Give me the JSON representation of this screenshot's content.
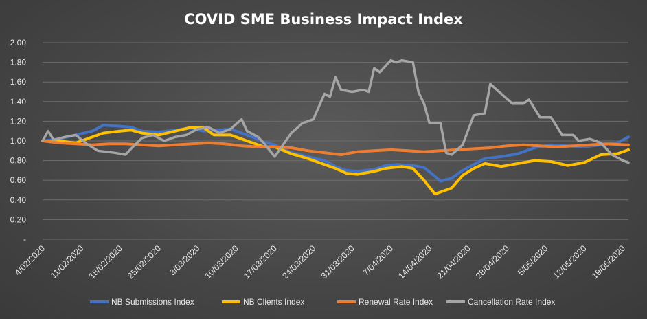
{
  "chart_data": {
    "type": "line",
    "title": "COVID SME Business Impact Index",
    "xlabel": "",
    "ylabel": "",
    "ylim": [
      0,
      2.0
    ],
    "yticks": [
      "2.00",
      "1.80",
      "1.60",
      "1.40",
      "1.20",
      "1.00",
      "0.80",
      "0.60",
      "0.40",
      "0.20",
      "-"
    ],
    "xticks": [
      "4/02/2020",
      "11/02/2020",
      "18/02/2020",
      "25/02/2020",
      "3/03/2020",
      "10/03/2020",
      "17/03/2020",
      "24/03/2020",
      "31/03/2020",
      "7/04/2020",
      "14/04/2020",
      "21/04/2020",
      "28/04/2020",
      "5/05/2020",
      "12/05/2020",
      "19/05/2020"
    ],
    "x_start": "4/02/2020",
    "x_end": "20/05/2020",
    "grid": true,
    "legend_position": "bottom",
    "series": [
      {
        "name": "NB Submissions Index",
        "color": "#4472c4",
        "points": [
          [
            "4/02/2020",
            1.0
          ],
          [
            "7/02/2020",
            1.02
          ],
          [
            "10/02/2020",
            1.06
          ],
          [
            "13/02/2020",
            1.1
          ],
          [
            "15/02/2020",
            1.16
          ],
          [
            "18/02/2020",
            1.15
          ],
          [
            "20/02/2020",
            1.14
          ],
          [
            "22/02/2020",
            1.1
          ],
          [
            "25/02/2020",
            1.09
          ],
          [
            "28/02/2020",
            1.11
          ],
          [
            "2/03/2020",
            1.13
          ],
          [
            "4/03/2020",
            1.1
          ],
          [
            "7/03/2020",
            1.11
          ],
          [
            "9/03/2020",
            1.12
          ],
          [
            "11/03/2020",
            1.08
          ],
          [
            "13/03/2020",
            1.04
          ],
          [
            "15/03/2020",
            0.99
          ],
          [
            "17/03/2020",
            0.96
          ],
          [
            "20/03/2020",
            0.88
          ],
          [
            "23/03/2020",
            0.84
          ],
          [
            "26/03/2020",
            0.8
          ],
          [
            "28/03/2020",
            0.74
          ],
          [
            "30/03/2020",
            0.7
          ],
          [
            "1/04/2020",
            0.69
          ],
          [
            "4/04/2020",
            0.71
          ],
          [
            "6/04/2020",
            0.75
          ],
          [
            "8/04/2020",
            0.76
          ],
          [
            "11/04/2020",
            0.75
          ],
          [
            "13/04/2020",
            0.73
          ],
          [
            "15/04/2020",
            0.64
          ],
          [
            "16/04/2020",
            0.59
          ],
          [
            "18/04/2020",
            0.62
          ],
          [
            "20/04/2020",
            0.7
          ],
          [
            "22/04/2020",
            0.76
          ],
          [
            "24/04/2020",
            0.82
          ],
          [
            "27/04/2020",
            0.84
          ],
          [
            "30/04/2020",
            0.87
          ],
          [
            "3/05/2020",
            0.93
          ],
          [
            "6/05/2020",
            0.96
          ],
          [
            "9/05/2020",
            0.95
          ],
          [
            "12/05/2020",
            0.94
          ],
          [
            "15/05/2020",
            0.96
          ],
          [
            "18/05/2020",
            0.98
          ],
          [
            "20/05/2020",
            1.04
          ]
        ]
      },
      {
        "name": "NB Clients Index",
        "color": "#ffc000",
        "points": [
          [
            "4/02/2020",
            1.0
          ],
          [
            "7/02/2020",
            1.0
          ],
          [
            "10/02/2020",
            0.98
          ],
          [
            "13/02/2020",
            1.04
          ],
          [
            "15/02/2020",
            1.08
          ],
          [
            "18/02/2020",
            1.1
          ],
          [
            "20/02/2020",
            1.11
          ],
          [
            "22/02/2020",
            1.08
          ],
          [
            "25/02/2020",
            1.06
          ],
          [
            "28/02/2020",
            1.1
          ],
          [
            "2/03/2020",
            1.14
          ],
          [
            "4/03/2020",
            1.14
          ],
          [
            "6/03/2020",
            1.06
          ],
          [
            "9/03/2020",
            1.06
          ],
          [
            "11/03/2020",
            1.02
          ],
          [
            "13/03/2020",
            0.98
          ],
          [
            "15/03/2020",
            0.94
          ],
          [
            "17/03/2020",
            0.94
          ],
          [
            "20/03/2020",
            0.87
          ],
          [
            "23/03/2020",
            0.82
          ],
          [
            "26/03/2020",
            0.76
          ],
          [
            "28/03/2020",
            0.72
          ],
          [
            "30/03/2020",
            0.67
          ],
          [
            "1/04/2020",
            0.66
          ],
          [
            "4/04/2020",
            0.69
          ],
          [
            "6/04/2020",
            0.72
          ],
          [
            "9/04/2020",
            0.74
          ],
          [
            "11/04/2020",
            0.72
          ],
          [
            "13/04/2020",
            0.6
          ],
          [
            "15/04/2020",
            0.46
          ],
          [
            "18/04/2020",
            0.52
          ],
          [
            "20/04/2020",
            0.65
          ],
          [
            "22/04/2020",
            0.72
          ],
          [
            "24/04/2020",
            0.77
          ],
          [
            "27/04/2020",
            0.74
          ],
          [
            "30/04/2020",
            0.77
          ],
          [
            "3/05/2020",
            0.8
          ],
          [
            "6/05/2020",
            0.79
          ],
          [
            "9/05/2020",
            0.75
          ],
          [
            "12/05/2020",
            0.78
          ],
          [
            "15/05/2020",
            0.86
          ],
          [
            "18/05/2020",
            0.87
          ],
          [
            "20/05/2020",
            0.91
          ]
        ]
      },
      {
        "name": "Renewal Rate Index",
        "color": "#ed7d31",
        "points": [
          [
            "4/02/2020",
            1.0
          ],
          [
            "7/02/2020",
            0.98
          ],
          [
            "10/02/2020",
            0.97
          ],
          [
            "13/02/2020",
            0.96
          ],
          [
            "16/02/2020",
            0.97
          ],
          [
            "19/02/2020",
            0.97
          ],
          [
            "22/02/2020",
            0.96
          ],
          [
            "25/02/2020",
            0.95
          ],
          [
            "28/02/2020",
            0.96
          ],
          [
            "2/03/2020",
            0.97
          ],
          [
            "5/03/2020",
            0.98
          ],
          [
            "8/03/2020",
            0.97
          ],
          [
            "11/03/2020",
            0.95
          ],
          [
            "14/03/2020",
            0.94
          ],
          [
            "17/03/2020",
            0.94
          ],
          [
            "20/03/2020",
            0.93
          ],
          [
            "23/03/2020",
            0.9
          ],
          [
            "26/03/2020",
            0.88
          ],
          [
            "29/03/2020",
            0.86
          ],
          [
            "1/04/2020",
            0.89
          ],
          [
            "4/04/2020",
            0.9
          ],
          [
            "7/04/2020",
            0.91
          ],
          [
            "10/04/2020",
            0.9
          ],
          [
            "13/04/2020",
            0.89
          ],
          [
            "16/04/2020",
            0.9
          ],
          [
            "19/04/2020",
            0.91
          ],
          [
            "22/04/2020",
            0.92
          ],
          [
            "25/04/2020",
            0.93
          ],
          [
            "28/04/2020",
            0.95
          ],
          [
            "1/05/2020",
            0.96
          ],
          [
            "4/05/2020",
            0.95
          ],
          [
            "7/05/2020",
            0.94
          ],
          [
            "10/05/2020",
            0.95
          ],
          [
            "13/05/2020",
            0.96
          ],
          [
            "16/05/2020",
            0.97
          ],
          [
            "20/05/2020",
            0.96
          ]
        ]
      },
      {
        "name": "Cancellation Rate Index",
        "color": "#a5a5a5",
        "points": [
          [
            "4/02/2020",
            1.0
          ],
          [
            "5/02/2020",
            1.1
          ],
          [
            "6/02/2020",
            1.01
          ],
          [
            "8/02/2020",
            1.04
          ],
          [
            "10/02/2020",
            1.06
          ],
          [
            "12/02/2020",
            0.97
          ],
          [
            "14/02/2020",
            0.9
          ],
          [
            "17/02/2020",
            0.88
          ],
          [
            "19/02/2020",
            0.86
          ],
          [
            "20/02/2020",
            0.92
          ],
          [
            "22/02/2020",
            1.03
          ],
          [
            "24/02/2020",
            1.06
          ],
          [
            "26/02/2020",
            1.0
          ],
          [
            "28/02/2020",
            1.04
          ],
          [
            "1/03/2020",
            1.06
          ],
          [
            "3/03/2020",
            1.12
          ],
          [
            "5/03/2020",
            1.14
          ],
          [
            "7/03/2020",
            1.08
          ],
          [
            "9/03/2020",
            1.12
          ],
          [
            "11/03/2020",
            1.22
          ],
          [
            "12/03/2020",
            1.1
          ],
          [
            "14/03/2020",
            1.04
          ],
          [
            "15/03/2020",
            0.98
          ],
          [
            "17/03/2020",
            0.84
          ],
          [
            "18/03/2020",
            0.92
          ],
          [
            "20/03/2020",
            1.08
          ],
          [
            "22/03/2020",
            1.18
          ],
          [
            "24/03/2020",
            1.22
          ],
          [
            "26/03/2020",
            1.48
          ],
          [
            "27/03/2020",
            1.45
          ],
          [
            "28/03/2020",
            1.65
          ],
          [
            "29/03/2020",
            1.52
          ],
          [
            "31/03/2020",
            1.5
          ],
          [
            "2/04/2020",
            1.52
          ],
          [
            "3/04/2020",
            1.5
          ],
          [
            "4/04/2020",
            1.74
          ],
          [
            "5/04/2020",
            1.7
          ],
          [
            "7/04/2020",
            1.82
          ],
          [
            "8/04/2020",
            1.8
          ],
          [
            "9/04/2020",
            1.82
          ],
          [
            "11/04/2020",
            1.8
          ],
          [
            "12/04/2020",
            1.5
          ],
          [
            "13/04/2020",
            1.38
          ],
          [
            "14/04/2020",
            1.18
          ],
          [
            "16/04/2020",
            1.18
          ],
          [
            "17/04/2020",
            0.88
          ],
          [
            "18/04/2020",
            0.86
          ],
          [
            "20/04/2020",
            0.96
          ],
          [
            "22/04/2020",
            1.26
          ],
          [
            "24/04/2020",
            1.28
          ],
          [
            "25/04/2020",
            1.58
          ],
          [
            "27/04/2020",
            1.48
          ],
          [
            "29/04/2020",
            1.38
          ],
          [
            "1/05/2020",
            1.38
          ],
          [
            "2/05/2020",
            1.42
          ],
          [
            "4/05/2020",
            1.24
          ],
          [
            "6/05/2020",
            1.24
          ],
          [
            "8/05/2020",
            1.06
          ],
          [
            "10/05/2020",
            1.06
          ],
          [
            "11/05/2020",
            1.0
          ],
          [
            "13/05/2020",
            1.02
          ],
          [
            "15/05/2020",
            0.98
          ],
          [
            "17/05/2020",
            0.86
          ],
          [
            "19/05/2020",
            0.8
          ],
          [
            "20/05/2020",
            0.78
          ]
        ]
      }
    ]
  }
}
